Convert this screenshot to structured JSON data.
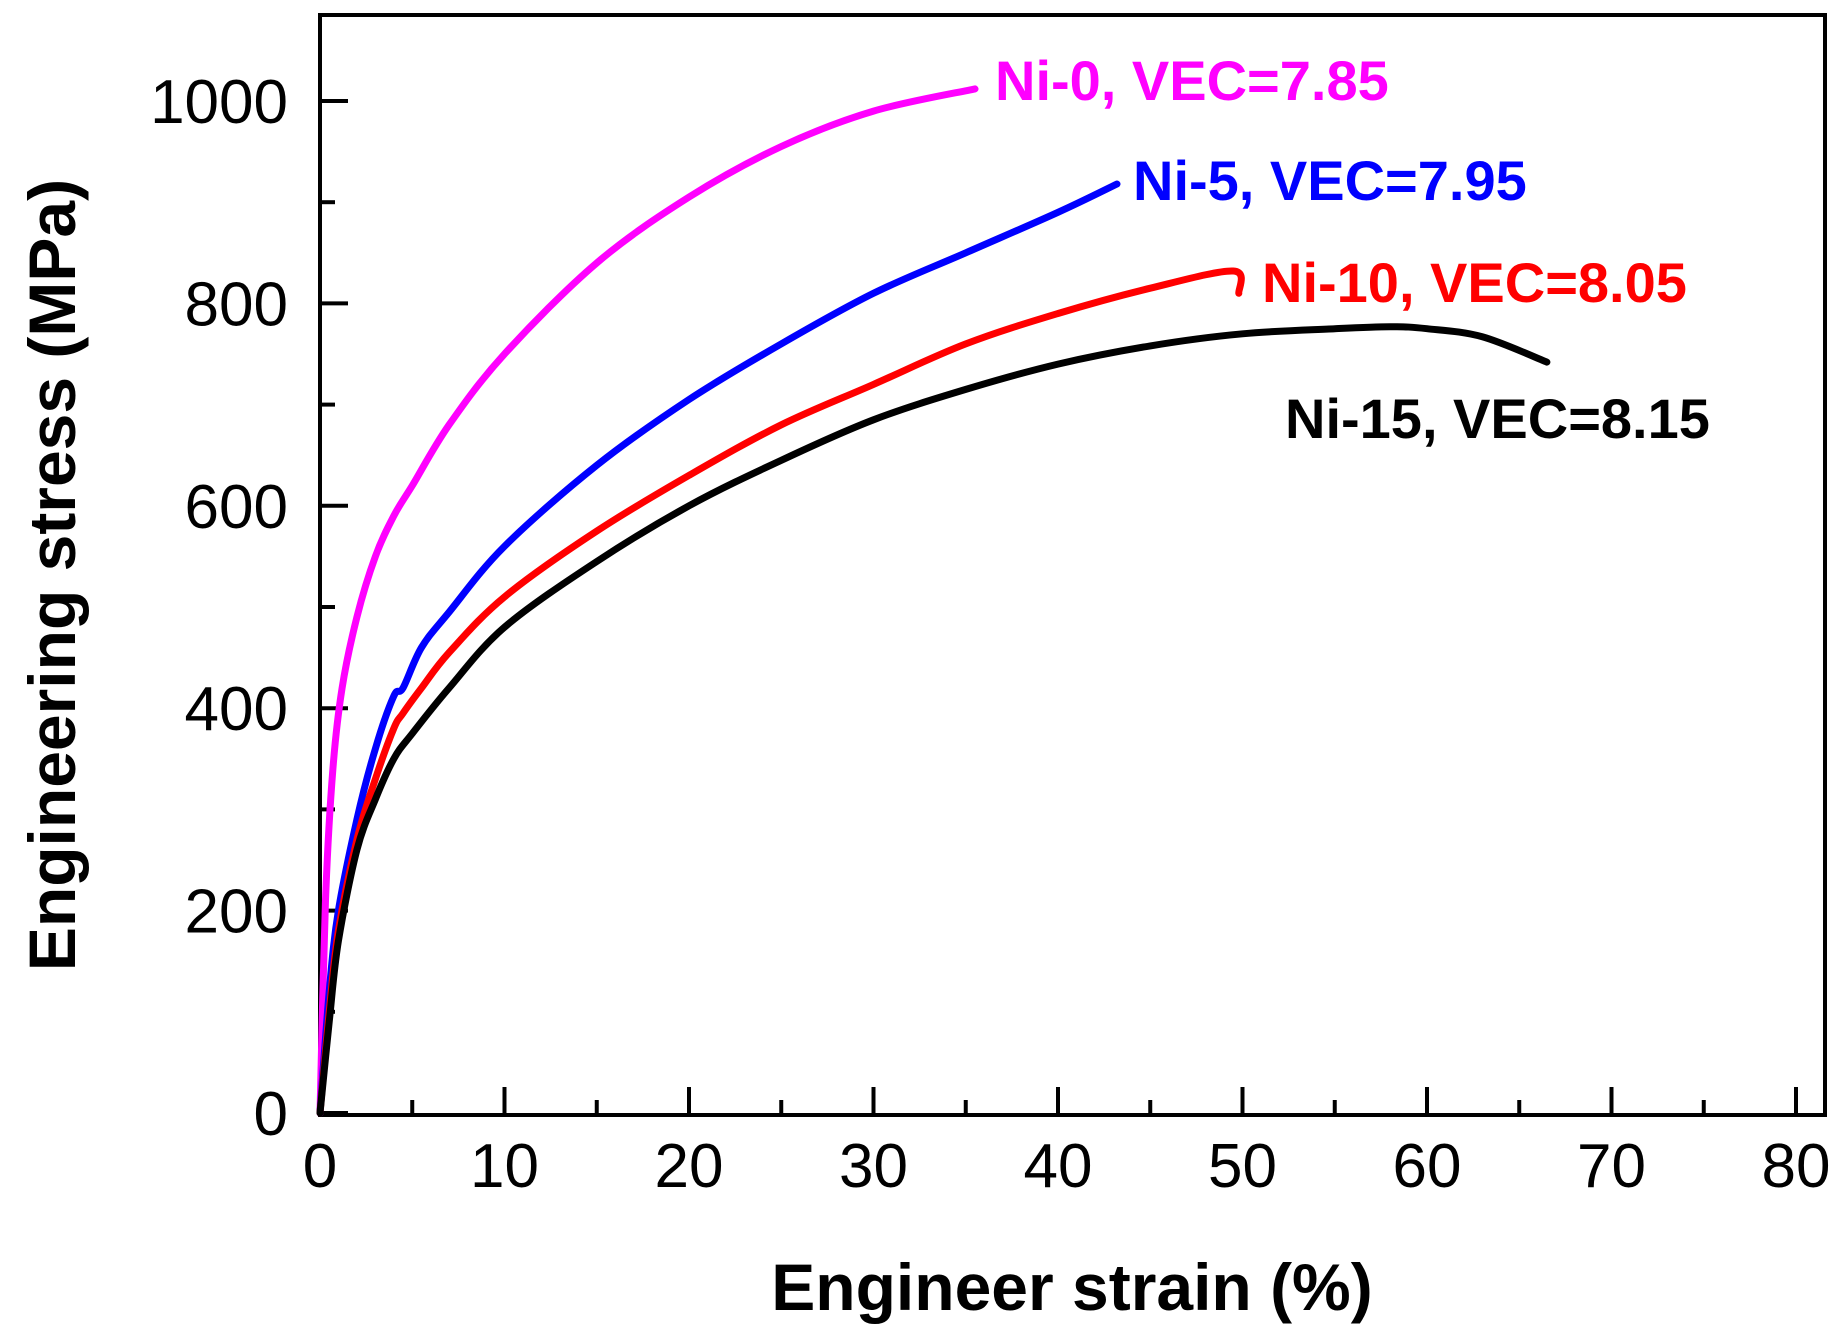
{
  "chart_data": {
    "type": "line",
    "title": "",
    "xlabel": "Engineer strain (%)",
    "ylabel": "Engineering stress (MPa)",
    "xlim": [
      0,
      82
    ],
    "ylim": [
      0,
      1090
    ],
    "xticks": [
      0,
      10,
      20,
      30,
      40,
      50,
      60,
      70,
      80
    ],
    "yticks": [
      0,
      200,
      400,
      600,
      800,
      1000
    ],
    "grid": false,
    "legend": "inline labels",
    "series": [
      {
        "name": "Ni-0, VEC=7.85",
        "color": "#ff00ff",
        "x": [
          0,
          0.3,
          0.7,
          1.2,
          2,
          3,
          4,
          5,
          7,
          10,
          15,
          20,
          25,
          30,
          35.5
        ],
        "y": [
          0,
          210,
          340,
          420,
          490,
          550,
          590,
          620,
          680,
          750,
          840,
          905,
          955,
          990,
          1012
        ]
      },
      {
        "name": "Ni-5, VEC=7.95",
        "color": "#0000ff",
        "x": [
          0,
          0.5,
          1,
          2,
          3,
          4,
          4.5,
          5.5,
          7,
          10,
          15,
          20,
          25,
          30,
          35,
          40,
          43.2
        ],
        "y": [
          0,
          120,
          200,
          290,
          360,
          412,
          420,
          460,
          495,
          560,
          640,
          705,
          760,
          810,
          850,
          890,
          918
        ]
      },
      {
        "name": "Ni-10, VEC=8.05",
        "color": "#ff0000",
        "x": [
          0,
          0.5,
          1,
          2,
          3,
          4,
          4.5,
          5.5,
          7,
          10,
          15,
          20,
          25,
          30,
          35,
          40,
          45,
          49.5,
          49.8
        ],
        "y": [
          0,
          100,
          180,
          270,
          330,
          380,
          395,
          420,
          455,
          510,
          575,
          630,
          680,
          720,
          760,
          790,
          815,
          832,
          810
        ]
      },
      {
        "name": "Ni-15, VEC=8.15",
        "color": "#000000",
        "x": [
          0,
          0.5,
          1,
          2,
          3,
          4,
          5,
          7,
          10,
          15,
          20,
          25,
          30,
          35,
          40,
          45,
          50,
          55,
          58,
          60,
          63,
          66.5
        ],
        "y": [
          0,
          90,
          170,
          260,
          310,
          350,
          375,
          420,
          480,
          545,
          600,
          645,
          685,
          715,
          740,
          758,
          770,
          775,
          777,
          775,
          767,
          742
        ]
      }
    ]
  }
}
